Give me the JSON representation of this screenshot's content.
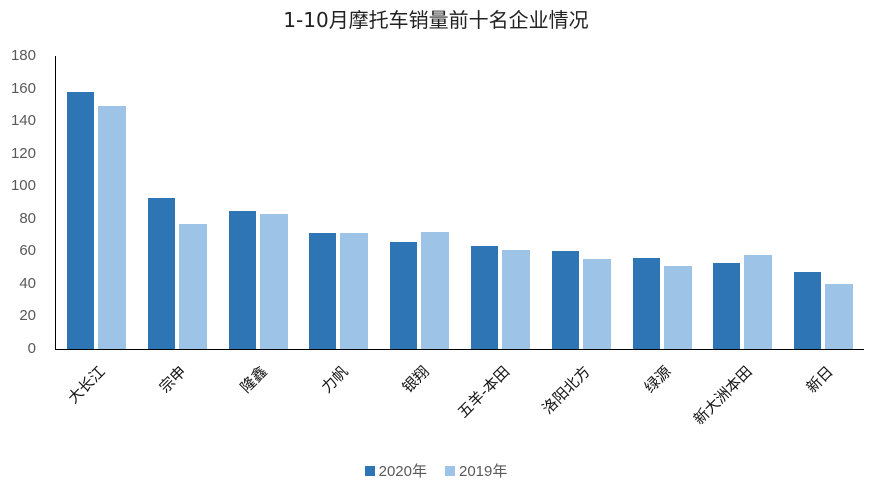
{
  "chart_data": {
    "type": "bar",
    "title": "1-10月摩托车销量前十名企业情况",
    "xlabel": "",
    "ylabel": "",
    "ylim": [
      0,
      180
    ],
    "yticks": [
      0,
      20,
      40,
      60,
      80,
      100,
      120,
      140,
      160,
      180
    ],
    "grid": false,
    "legend_position": "bottom",
    "categories": [
      "大长江",
      "宗申",
      "隆鑫",
      "力帆",
      "银翔",
      "五羊-本田",
      "洛阳北方",
      "绿源",
      "新大洲本田",
      "新日"
    ],
    "series": [
      {
        "name": "2020年",
        "color": "#2E75B6",
        "values": [
          158,
          93,
          85,
          71,
          66,
          63,
          60,
          56,
          53,
          47
        ]
      },
      {
        "name": "2019年",
        "color": "#9DC3E6",
        "values": [
          149,
          77,
          83,
          71,
          72,
          61,
          55,
          51,
          58,
          40
        ]
      }
    ]
  }
}
